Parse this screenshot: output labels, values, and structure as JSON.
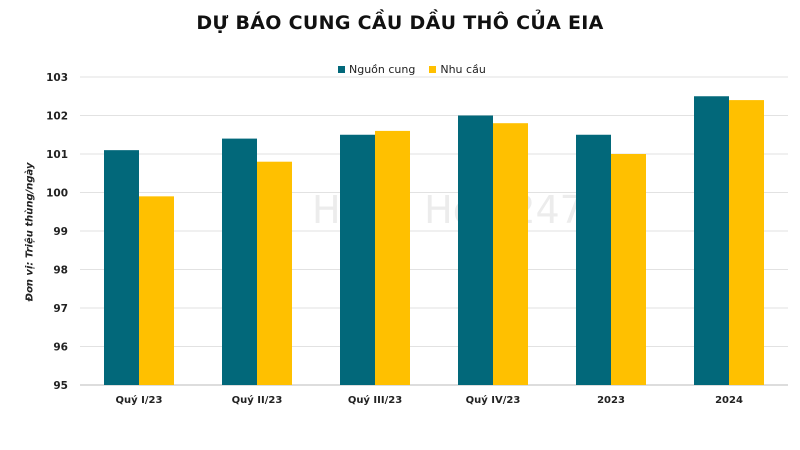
{
  "chart_data": {
    "type": "bar",
    "title": "DỰ BÁO CUNG CẦU DẦU THÔ CỦA EIA",
    "ylabel": "Đơn vị: Triệu thùng/ngày",
    "xlabel": "",
    "categories": [
      "Quý I/23",
      "Quý II/23",
      "Quý III/23",
      "Quý IV/23",
      "2023",
      "2024"
    ],
    "series": [
      {
        "name": "Nguồn cung",
        "color": "#02687a",
        "values": [
          101.1,
          101.4,
          101.5,
          102.0,
          101.5,
          102.5
        ]
      },
      {
        "name": "Nhu cầu",
        "color": "#ffc000",
        "values": [
          99.9,
          100.8,
          101.6,
          101.8,
          101.0,
          102.4
        ]
      }
    ],
    "ylim": [
      95,
      103
    ],
    "yticks": [
      95,
      96,
      97,
      98,
      99,
      100,
      101,
      102,
      103
    ],
    "grid": true,
    "legend": "top-center"
  },
  "watermark": "Hàng Hóa 247"
}
